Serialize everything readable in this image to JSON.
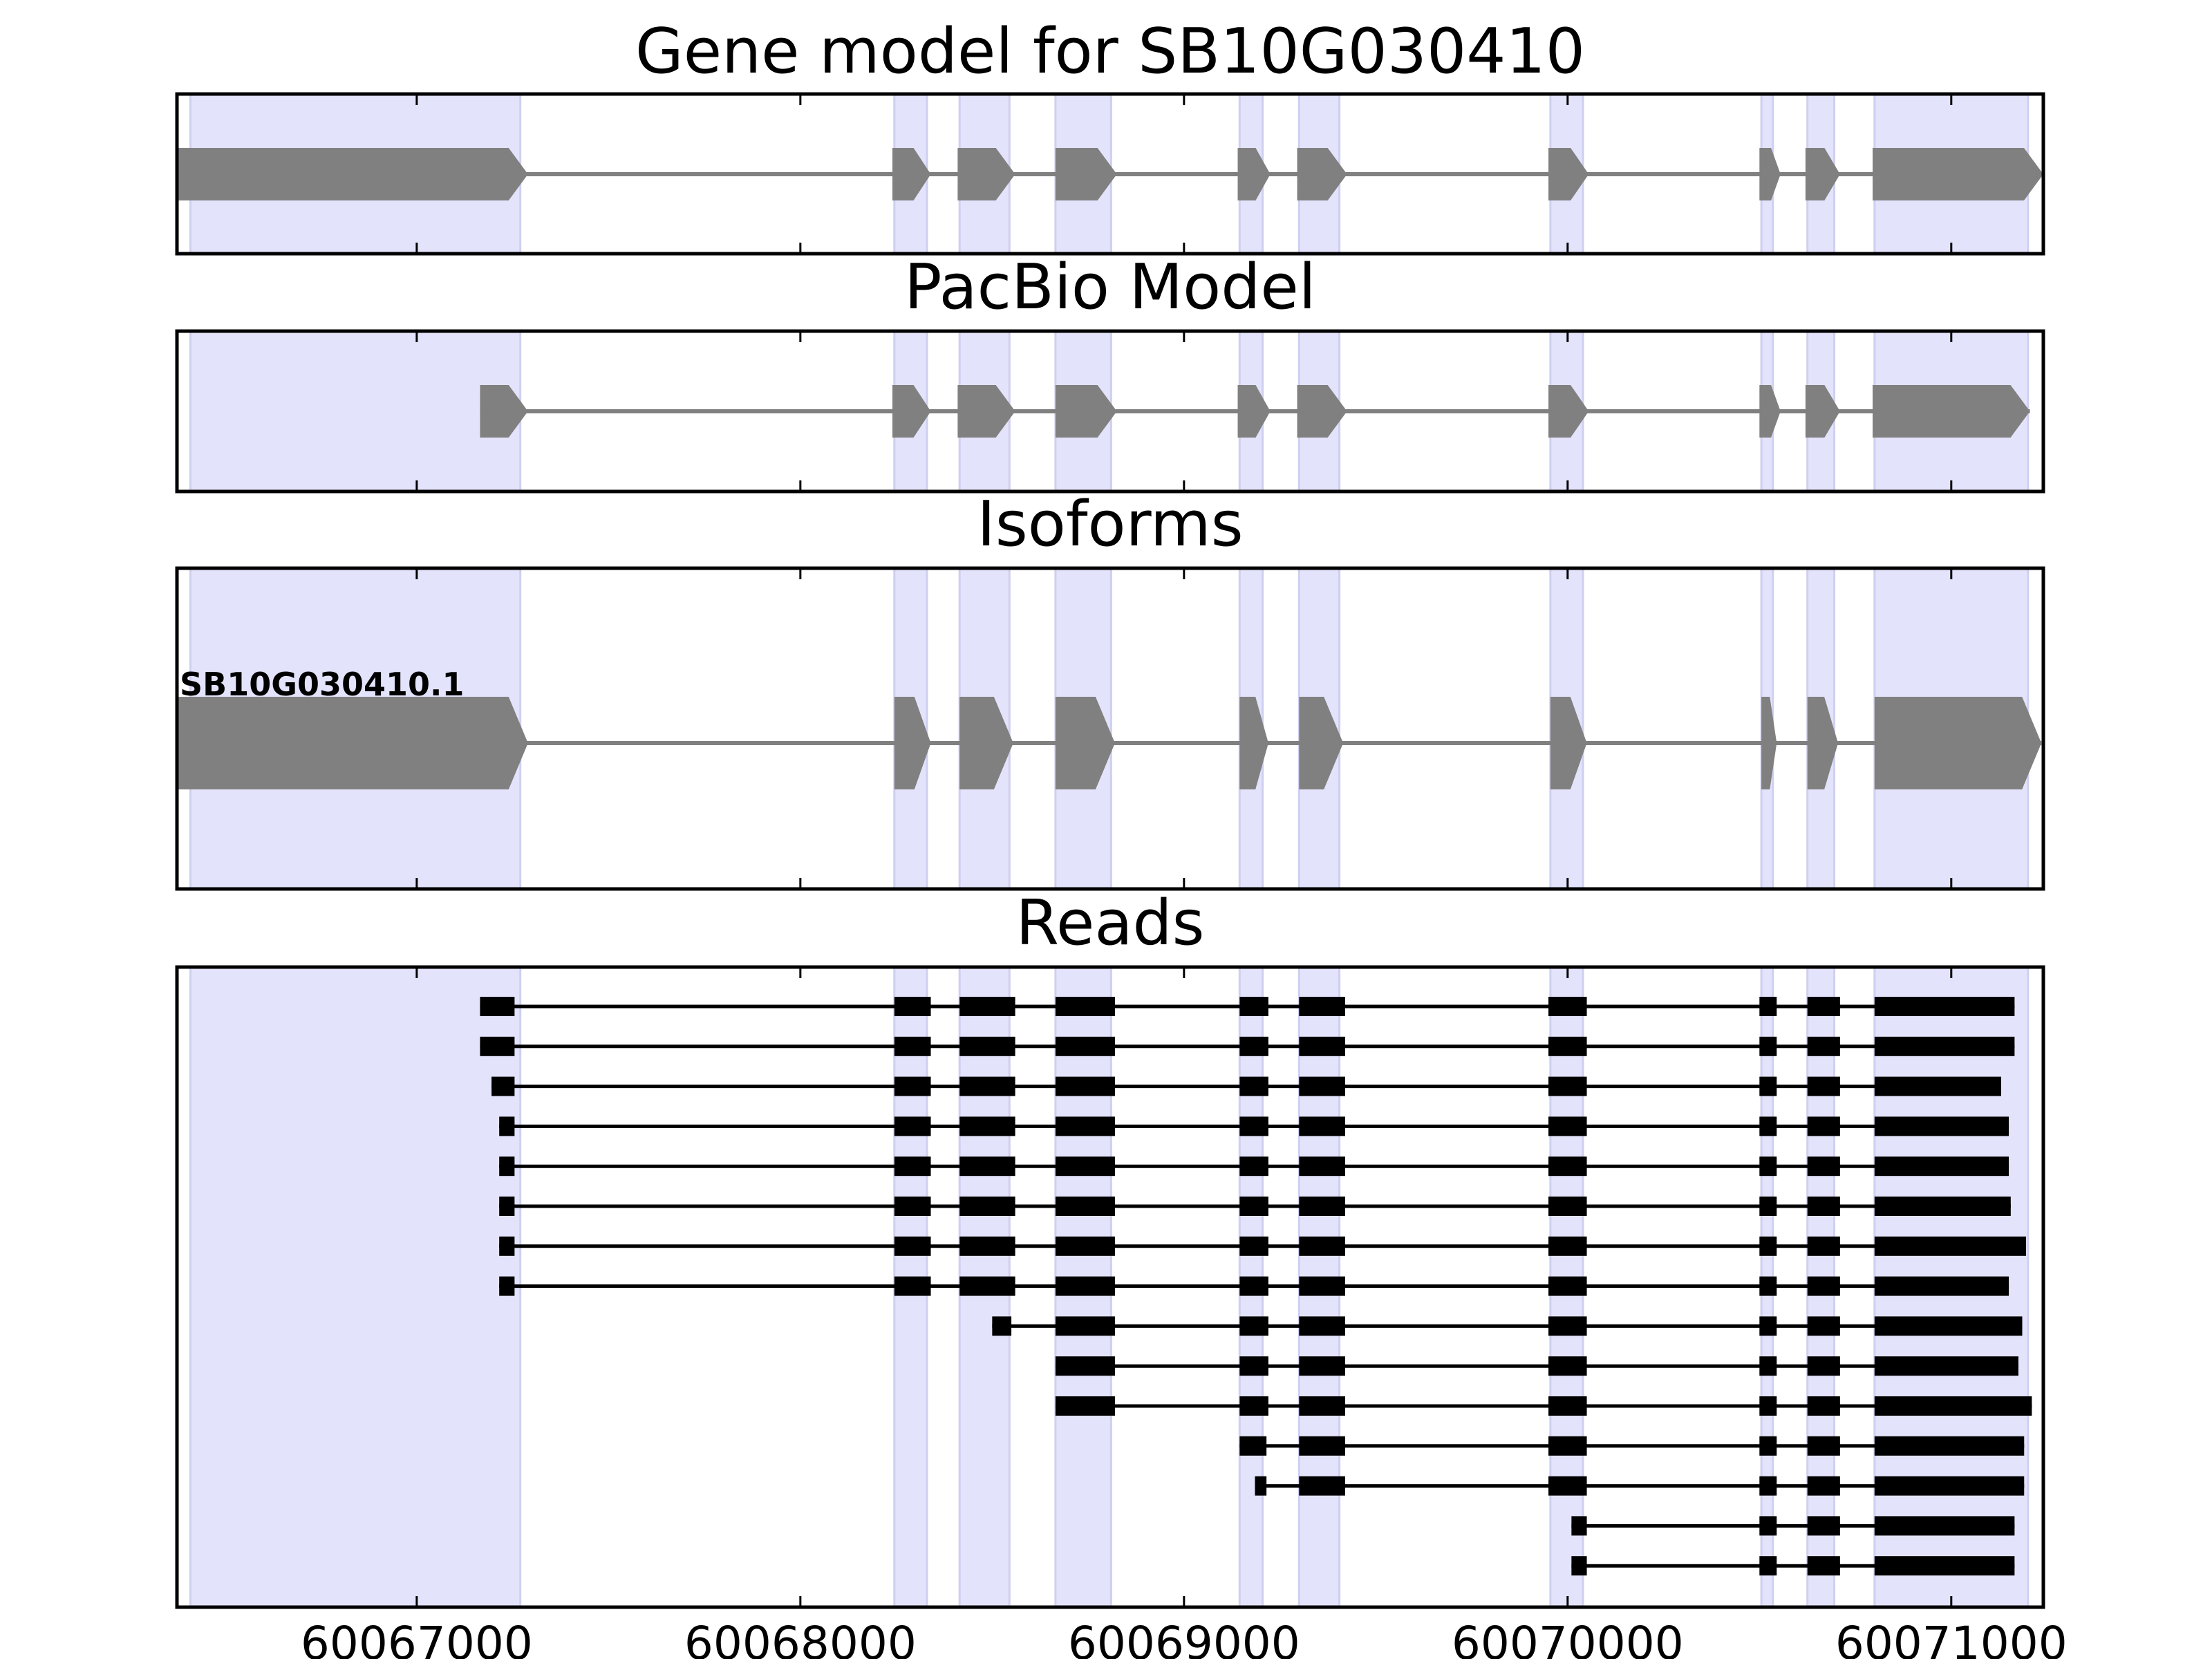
{
  "colors": {
    "exon_band": "#e3e3fb",
    "exon_band_edge": "#cfcff0",
    "model_fill": "#808080",
    "read_fill": "#000000",
    "axes_frame": "#000000"
  },
  "chart_data": {
    "type": "gene-structure",
    "xlim": [
      60066375,
      60071240
    ],
    "x_ticks": [
      60067000,
      60068000,
      60069000,
      60070000,
      60071000
    ],
    "x_tick_labels": [
      "60067000",
      "60068000",
      "60069000",
      "60070000",
      "60071000"
    ],
    "exon_bands": [
      [
        60066410,
        60067270
      ],
      [
        60068245,
        60068330
      ],
      [
        60068415,
        60068545
      ],
      [
        60068665,
        60068810
      ],
      [
        60069145,
        60069205
      ],
      [
        60069300,
        60069405
      ],
      [
        60069955,
        60070040
      ],
      [
        60070505,
        60070535
      ],
      [
        60070625,
        60070695
      ],
      [
        60070800,
        60071200
      ]
    ],
    "panels": [
      {
        "title": "Gene model for SB10G030410",
        "rows": [
          {
            "label": "",
            "exons": [
              [
                60066375,
                60067290
              ],
              [
                60068240,
                60068340
              ],
              [
                60068410,
                60068560
              ],
              [
                60068665,
                60068825
              ],
              [
                60069140,
                60069225
              ],
              [
                60069295,
                60069425
              ],
              [
                60069950,
                60070055
              ],
              [
                60070500,
                60070555
              ],
              [
                60070620,
                60070710
              ],
              [
                60070795,
                60071240
              ]
            ]
          }
        ]
      },
      {
        "title": "PacBio Model",
        "rows": [
          {
            "label": "",
            "exons": [
              [
                60067165,
                60067290
              ],
              [
                60068240,
                60068340
              ],
              [
                60068410,
                60068560
              ],
              [
                60068665,
                60068825
              ],
              [
                60069140,
                60069225
              ],
              [
                60069295,
                60069425
              ],
              [
                60069950,
                60070055
              ],
              [
                60070500,
                60070555
              ],
              [
                60070620,
                60070710
              ],
              [
                60070795,
                60071205
              ]
            ]
          }
        ]
      },
      {
        "title": "Isoforms",
        "rows": [
          {
            "label": "SB10G030410.1",
            "exons": [
              [
                60066375,
                60067290
              ],
              [
                60068245,
                60068340
              ],
              [
                60068415,
                60068555
              ],
              [
                60068665,
                60068820
              ],
              [
                60069145,
                60069220
              ],
              [
                60069300,
                60069415
              ],
              [
                60069955,
                60070050
              ],
              [
                60070505,
                60070545
              ],
              [
                60070625,
                60070705
              ],
              [
                60070800,
                60071235
              ]
            ]
          }
        ]
      },
      {
        "title": "Reads",
        "rows": [
          {
            "exons": [
              [
                60067165,
                60067255
              ],
              [
                60068245,
                60068340
              ],
              [
                60068415,
                60068560
              ],
              [
                60068665,
                60068820
              ],
              [
                60069145,
                60069220
              ],
              [
                60069300,
                60069420
              ],
              [
                60069950,
                60070050
              ],
              [
                60070500,
                60070545
              ],
              [
                60070625,
                60070710
              ],
              [
                60070800,
                60071165
              ]
            ]
          },
          {
            "exons": [
              [
                60067165,
                60067255
              ],
              [
                60068245,
                60068340
              ],
              [
                60068415,
                60068560
              ],
              [
                60068665,
                60068820
              ],
              [
                60069145,
                60069220
              ],
              [
                60069300,
                60069420
              ],
              [
                60069950,
                60070050
              ],
              [
                60070500,
                60070545
              ],
              [
                60070625,
                60070710
              ],
              [
                60070800,
                60071165
              ]
            ]
          },
          {
            "exons": [
              [
                60067195,
                60067255
              ],
              [
                60068245,
                60068340
              ],
              [
                60068415,
                60068560
              ],
              [
                60068665,
                60068820
              ],
              [
                60069145,
                60069220
              ],
              [
                60069300,
                60069420
              ],
              [
                60069950,
                60070050
              ],
              [
                60070500,
                60070545
              ],
              [
                60070625,
                60070710
              ],
              [
                60070800,
                60071130
              ]
            ]
          },
          {
            "exons": [
              [
                60067215,
                60067255
              ],
              [
                60068245,
                60068340
              ],
              [
                60068415,
                60068560
              ],
              [
                60068665,
                60068820
              ],
              [
                60069145,
                60069220
              ],
              [
                60069300,
                60069420
              ],
              [
                60069950,
                60070050
              ],
              [
                60070500,
                60070545
              ],
              [
                60070625,
                60070710
              ],
              [
                60070800,
                60071150
              ]
            ]
          },
          {
            "exons": [
              [
                60067215,
                60067255
              ],
              [
                60068245,
                60068340
              ],
              [
                60068415,
                60068560
              ],
              [
                60068665,
                60068820
              ],
              [
                60069145,
                60069220
              ],
              [
                60069300,
                60069420
              ],
              [
                60069950,
                60070050
              ],
              [
                60070500,
                60070545
              ],
              [
                60070625,
                60070710
              ],
              [
                60070800,
                60071150
              ]
            ]
          },
          {
            "exons": [
              [
                60067215,
                60067255
              ],
              [
                60068245,
                60068340
              ],
              [
                60068415,
                60068560
              ],
              [
                60068665,
                60068820
              ],
              [
                60069145,
                60069220
              ],
              [
                60069300,
                60069420
              ],
              [
                60069950,
                60070050
              ],
              [
                60070500,
                60070545
              ],
              [
                60070625,
                60070710
              ],
              [
                60070800,
                60071155
              ]
            ]
          },
          {
            "exons": [
              [
                60067215,
                60067255
              ],
              [
                60068245,
                60068340
              ],
              [
                60068415,
                60068560
              ],
              [
                60068665,
                60068820
              ],
              [
                60069145,
                60069220
              ],
              [
                60069300,
                60069420
              ],
              [
                60069950,
                60070050
              ],
              [
                60070500,
                60070545
              ],
              [
                60070625,
                60070710
              ],
              [
                60070800,
                60071195
              ]
            ]
          },
          {
            "exons": [
              [
                60067215,
                60067255
              ],
              [
                60068245,
                60068340
              ],
              [
                60068415,
                60068560
              ],
              [
                60068665,
                60068820
              ],
              [
                60069145,
                60069220
              ],
              [
                60069300,
                60069420
              ],
              [
                60069950,
                60070050
              ],
              [
                60070500,
                60070545
              ],
              [
                60070625,
                60070710
              ],
              [
                60070800,
                60071150
              ]
            ]
          },
          {
            "exons": [
              [
                60068500,
                60068550
              ],
              [
                60068665,
                60068820
              ],
              [
                60069145,
                60069220
              ],
              [
                60069300,
                60069420
              ],
              [
                60069950,
                60070050
              ],
              [
                60070500,
                60070545
              ],
              [
                60070625,
                60070710
              ],
              [
                60070800,
                60071185
              ]
            ]
          },
          {
            "exons": [
              [
                60068665,
                60068820
              ],
              [
                60069145,
                60069220
              ],
              [
                60069300,
                60069420
              ],
              [
                60069950,
                60070050
              ],
              [
                60070500,
                60070545
              ],
              [
                60070625,
                60070710
              ],
              [
                60070800,
                60071175
              ]
            ]
          },
          {
            "exons": [
              [
                60068665,
                60068820
              ],
              [
                60069145,
                60069220
              ],
              [
                60069300,
                60069420
              ],
              [
                60069950,
                60070050
              ],
              [
                60070500,
                60070545
              ],
              [
                60070625,
                60070710
              ],
              [
                60070800,
                60071210
              ]
            ]
          },
          {
            "exons": [
              [
                60069145,
                60069215
              ],
              [
                60069300,
                60069420
              ],
              [
                60069950,
                60070050
              ],
              [
                60070500,
                60070545
              ],
              [
                60070625,
                60070710
              ],
              [
                60070800,
                60071190
              ]
            ]
          },
          {
            "exons": [
              [
                60069185,
                60069215
              ],
              [
                60069300,
                60069420
              ],
              [
                60069950,
                60070050
              ],
              [
                60070500,
                60070545
              ],
              [
                60070625,
                60070710
              ],
              [
                60070800,
                60071190
              ]
            ]
          },
          {
            "exons": [
              [
                60070010,
                60070050
              ],
              [
                60070500,
                60070545
              ],
              [
                60070625,
                60070710
              ],
              [
                60070800,
                60071165
              ]
            ]
          },
          {
            "exons": [
              [
                60070010,
                60070050
              ],
              [
                60070500,
                60070545
              ],
              [
                60070625,
                60070710
              ],
              [
                60070800,
                60071165
              ]
            ]
          }
        ]
      }
    ]
  }
}
